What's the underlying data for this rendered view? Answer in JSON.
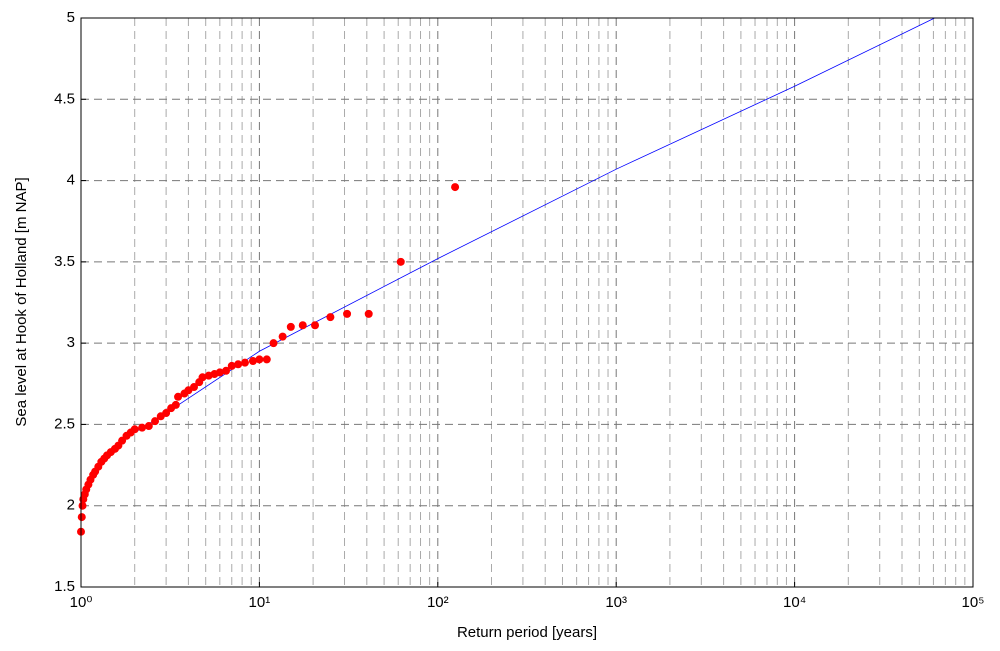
{
  "chart_data": {
    "type": "scatter",
    "x_label": "Return period [years]",
    "y_label": "Sea level at Hook of Holland [m NAP]",
    "xscale": "log",
    "grid": true,
    "minor_grid": true,
    "xlim": [
      1,
      100000
    ],
    "ylim": [
      1.5,
      5
    ],
    "xticks": [
      {
        "value": 1,
        "label": "10⁰"
      },
      {
        "value": 10,
        "label": "10¹"
      },
      {
        "value": 100,
        "label": "10²"
      },
      {
        "value": 1000,
        "label": "10³"
      },
      {
        "value": 10000,
        "label": "10⁴"
      },
      {
        "value": 100000,
        "label": "10⁵"
      }
    ],
    "yticks": [
      1.5,
      2,
      2.5,
      3,
      3.5,
      4,
      4.5,
      5
    ],
    "series": [
      {
        "kind": "points",
        "color": "#ff0000",
        "x": [
          1.0,
          1.01,
          1.02,
          1.03,
          1.05,
          1.07,
          1.1,
          1.13,
          1.17,
          1.2,
          1.25,
          1.3,
          1.35,
          1.4,
          1.47,
          1.55,
          1.62,
          1.7,
          1.8,
          1.9,
          2.0,
          2.2,
          2.4,
          2.6,
          2.8,
          3.0,
          3.2,
          3.4,
          3.5,
          3.8,
          4.0,
          4.3,
          4.6,
          4.8,
          5.2,
          5.6,
          6.0,
          6.5,
          7.0,
          7.6,
          8.3,
          9.2,
          10,
          11,
          12,
          13.5,
          15,
          17.5,
          20.5,
          25,
          31,
          41,
          62,
          125
        ],
        "values": [
          1.84,
          1.93,
          2.0,
          2.04,
          2.07,
          2.1,
          2.13,
          2.16,
          2.19,
          2.21,
          2.24,
          2.27,
          2.29,
          2.31,
          2.33,
          2.35,
          2.37,
          2.4,
          2.43,
          2.45,
          2.47,
          2.48,
          2.49,
          2.52,
          2.55,
          2.57,
          2.6,
          2.62,
          2.67,
          2.69,
          2.71,
          2.73,
          2.76,
          2.79,
          2.8,
          2.81,
          2.82,
          2.83,
          2.86,
          2.87,
          2.88,
          2.89,
          2.9,
          2.9,
          3.0,
          3.04,
          3.1,
          3.11,
          3.11,
          3.16,
          3.18,
          3.18,
          3.5,
          3.96
        ]
      },
      {
        "kind": "line",
        "color": "#0000ff",
        "x": [
          2,
          3,
          10,
          100,
          1000,
          10000,
          61000
        ],
        "values": [
          2.45,
          2.57,
          2.95,
          3.52,
          4.07,
          4.58,
          5.0
        ]
      }
    ]
  }
}
